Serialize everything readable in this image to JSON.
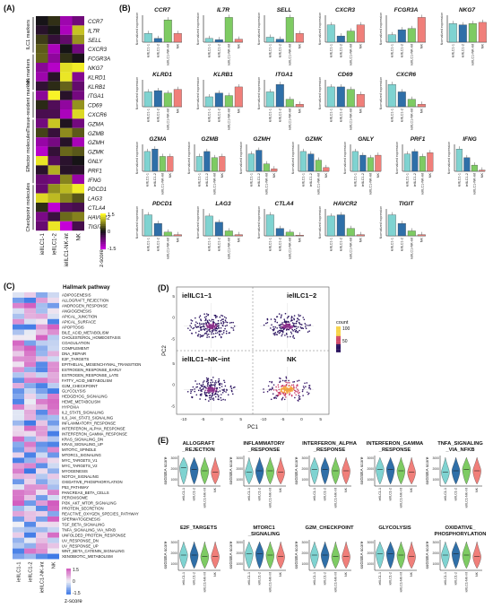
{
  "panel_labels": {
    "A": "(A)",
    "B": "(B)",
    "C": "(C)",
    "D": "(D)",
    "E": "(E)"
  },
  "colors": {
    "ielILC1_1": "#7fd3d1",
    "ielILC1_2": "#2f6fa8",
    "ielILC1_NK_int": "#7ecb63",
    "NK": "#f07f7a"
  },
  "panelA": {
    "groups": [
      "ILC1 markers",
      "NK markers",
      "Tissue-resident markers",
      "Effector molecules",
      "Checkpoint molecules"
    ],
    "genes": [
      "CCR7",
      "IL7R",
      "SELL",
      "CXCR3",
      "FCGR3A",
      "NKG7",
      "KLRD1",
      "KLRB1",
      "ITGA1",
      "CD69",
      "CXCR6",
      "GZMA",
      "GZMB",
      "GZMH",
      "GZMK",
      "GNLY",
      "PRF1",
      "IFNG",
      "PDCD1",
      "LAG3",
      "CTLA4",
      "HAVCR2",
      "TIGIT"
    ],
    "columns": [
      "ielILC1-1",
      "ielILC1-2",
      "ielILC1-NK-int",
      "NK"
    ],
    "legend_title": "z-score",
    "legend_ticks": [
      "1.5",
      "0",
      "-1.5"
    ]
  },
  "panelB": {
    "ylabel": "Normalized expression",
    "xlabels": [
      "ielILC1-1",
      "ielILC1-2",
      "ielILC1-NK-int",
      "NK"
    ],
    "genes": [
      {
        "name": "CCR7",
        "values": [
          0.35,
          0.15,
          0.9,
          0.35
        ]
      },
      {
        "name": "IL7R",
        "values": [
          0.15,
          0.1,
          1.0,
          0.12
        ]
      },
      {
        "name": "SELL",
        "values": [
          0.2,
          0.12,
          1.0,
          0.35
        ]
      },
      {
        "name": "CXCR3",
        "values": [
          0.7,
          0.25,
          0.45,
          0.7
        ]
      },
      {
        "name": "FCGR3A",
        "values": [
          0.3,
          0.5,
          0.55,
          1.0
        ]
      },
      {
        "name": "NKG7",
        "values": [
          0.75,
          0.7,
          0.75,
          0.8
        ]
      },
      {
        "name": "KLRD1",
        "values": [
          0.6,
          0.65,
          0.55,
          0.7
        ]
      },
      {
        "name": "KLRB1",
        "values": [
          0.4,
          0.55,
          0.45,
          0.8
        ]
      },
      {
        "name": "ITGA1",
        "values": [
          0.6,
          0.9,
          0.3,
          0.1
        ]
      },
      {
        "name": "CD69",
        "values": [
          0.8,
          0.8,
          0.7,
          0.5
        ]
      },
      {
        "name": "CXCR6",
        "values": [
          0.9,
          0.6,
          0.3,
          0.1
        ]
      },
      {
        "name": "GZMA",
        "values": [
          0.8,
          0.9,
          0.6,
          0.6
        ]
      },
      {
        "name": "GZMB",
        "values": [
          0.6,
          0.8,
          0.55,
          0.6
        ]
      },
      {
        "name": "GZMH",
        "values": [
          0.7,
          0.85,
          0.3,
          0.1
        ]
      },
      {
        "name": "GZMK",
        "values": [
          0.8,
          0.7,
          0.45,
          0.15
        ]
      },
      {
        "name": "GNLY",
        "values": [
          0.8,
          0.65,
          0.55,
          0.65
        ]
      },
      {
        "name": "PRF1",
        "values": [
          0.7,
          0.8,
          0.6,
          0.75
        ]
      },
      {
        "name": "IFNG",
        "values": [
          0.9,
          0.55,
          0.25,
          0.05
        ]
      },
      {
        "name": "PDCD1",
        "values": [
          0.85,
          0.5,
          0.15,
          0.05
        ]
      },
      {
        "name": "LAG3",
        "values": [
          0.8,
          0.55,
          0.2,
          0.05
        ]
      },
      {
        "name": "CTLA4",
        "values": [
          0.85,
          0.3,
          0.15,
          0.03
        ]
      },
      {
        "name": "HAVCR2",
        "values": [
          0.8,
          0.85,
          0.3,
          0.05
        ]
      },
      {
        "name": "TIGIT",
        "values": [
          0.85,
          0.5,
          0.2,
          0.05
        ]
      }
    ]
  },
  "panelC": {
    "title": "Hallmark pathway",
    "pathways": [
      "ADIPOGENESIS",
      "ALLOGRAFT_REJECTION",
      "ANDROGEN_RESPONSE",
      "ANGIOGENESIS",
      "APICAL_JUNCTION",
      "APICAL_SURFACE",
      "APOPTOSIS",
      "BILE_ACID_METABOLISM",
      "CHOLESTEROL_HOMEOSTASIS",
      "COAGULATION",
      "COMPLEMENT",
      "DNA_REPAIR",
      "E2F_TARGETS",
      "EPITHELIAL_MESENCHYMAL_TRANSITION",
      "ESTROGEN_RESPONSE_EARLY",
      "ESTROGEN_RESPONSE_LATE",
      "FATTY_ACID_METABOLISM",
      "G2M_CHECKPOINT",
      "GLYCOLYSIS",
      "HEDGEHOG_SIGNALING",
      "HEME_METABOLISM",
      "HYPOXIA",
      "IL2_STAT5_SIGNALING",
      "IL6_JAK_STAT3_SIGNALING",
      "INFLAMMATORY_RESPONSE",
      "INTERFERON_ALPHA_RESPONSE",
      "INTERFERON_GAMMA_RESPONSE",
      "KRAS_SIGNALING_DN",
      "KRAS_SIGNALING_UP",
      "MITOTIC_SPINDLE",
      "MTORC1_SIGNALING",
      "MYC_TARGETS_V1",
      "MYC_TARGETS_V2",
      "MYOGENESIS",
      "NOTCH_SIGNALING",
      "OXIDATIVE_PHOSPHORYLATION",
      "P53_PATHWAY",
      "PANCREAS_BETA_CELLS",
      "PEROXISOME",
      "PI3K_AKT_MTOR_SIGNALING",
      "PROTEIN_SECRETION",
      "REACTIVE_OXYGEN_SPECIES_PATHWAY",
      "SPERMATOGENESIS",
      "TGF_BETA_SIGNALING",
      "TNFA_SIGNALING_VIA_NFKB",
      "UNFOLDED_PROTEIN_RESPONSE",
      "UV_RESPONSE_DN",
      "UV_RESPONSE_UP",
      "WNT_BETA_CATENIN_SIGNALING",
      "XENOBIOTIC_METABOLISM"
    ],
    "columns": [
      "ielILC1-1",
      "ielILC1-2",
      "ielILC1-NK-int",
      "NK"
    ],
    "legend_title": "z-score",
    "legend_ticks": [
      "1.5",
      "0",
      "-1.5"
    ]
  },
  "panelD": {
    "subsets": [
      "ielILC1−1",
      "ielILC1−2",
      "ielILC1−NK−int",
      "NK"
    ],
    "xlabel": "PC1",
    "ylabel": "PC2",
    "xticks": [
      "-10",
      "-5",
      "0",
      "5",
      "-10",
      "-5",
      "0",
      "5"
    ],
    "yticks": [
      "5",
      "0",
      "-5",
      "5",
      "0",
      "-5"
    ],
    "legend_title": "count",
    "legend_ticks": [
      "100",
      "50"
    ]
  },
  "panelE": {
    "ylabel": "ssGSEA score",
    "xlabels": [
      "ielILC1-1",
      "ielILC1-2",
      "ielILC1-NK-int",
      "NK"
    ],
    "pathways": [
      {
        "title1": "ALLOGRAFT",
        "title2": "_REJECTION",
        "medians": [
          0.6,
          0.55,
          0.5,
          0.45
        ]
      },
      {
        "title1": "INFLAMMATORY",
        "title2": "_RESPONSE",
        "medians": [
          0.45,
          0.5,
          0.5,
          0.45
        ]
      },
      {
        "title1": "INTERFERON_ALPHA",
        "title2": "_RESPONSE",
        "medians": [
          0.55,
          0.55,
          0.5,
          0.5
        ]
      },
      {
        "title1": "INTERFERON_GAMMA",
        "title2": "_RESPONSE",
        "medians": [
          0.55,
          0.55,
          0.5,
          0.45
        ]
      },
      {
        "title1": "TNFA_SIGNALING",
        "title2": "_VIA_NFKB",
        "medians": [
          0.45,
          0.5,
          0.55,
          0.5
        ]
      },
      {
        "title1": "E2F_TARGETS",
        "title2": "",
        "medians": [
          0.5,
          0.5,
          0.45,
          0.45
        ]
      },
      {
        "title1": "MTORC1",
        "title2": "_SIGNALING",
        "medians": [
          0.55,
          0.55,
          0.5,
          0.45
        ]
      },
      {
        "title1": "G2M_CHECKPOINT",
        "title2": "",
        "medians": [
          0.5,
          0.5,
          0.45,
          0.45
        ]
      },
      {
        "title1": "GLYCOLYSIS",
        "title2": "",
        "medians": [
          0.55,
          0.55,
          0.5,
          0.45
        ]
      },
      {
        "title1": "OXIDATIVE_",
        "title2": "PHOSPHORYLATION",
        "medians": [
          0.5,
          0.55,
          0.5,
          0.45
        ]
      }
    ],
    "yticks": [
      "3000",
      "2000",
      "1000"
    ]
  }
}
